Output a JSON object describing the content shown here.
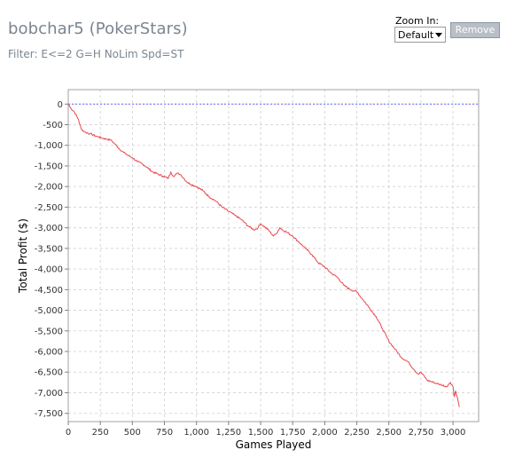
{
  "header": {
    "title": "bobchar5 (PokerStars)",
    "filter": "Filter: E<=2 G=H NoLim Spd=ST"
  },
  "controls": {
    "zoom_label": "Zoom In:",
    "zoom_value": "Default",
    "remove_label": "Remove"
  },
  "chart_data": {
    "type": "line",
    "title": "",
    "xlabel": "Games Played",
    "ylabel": "Total Profit ($)",
    "xlim": [
      0,
      3200
    ],
    "ylim": [
      -7700,
      350
    ],
    "grid": true,
    "legend": "none",
    "zero_line": true,
    "x_ticks": [
      {
        "v": 0,
        "label": "0"
      },
      {
        "v": 250,
        "label": "250"
      },
      {
        "v": 500,
        "label": "500"
      },
      {
        "v": 750,
        "label": "750"
      },
      {
        "v": 1000,
        "label": "1,000"
      },
      {
        "v": 1250,
        "label": "1,250"
      },
      {
        "v": 1500,
        "label": "1,500"
      },
      {
        "v": 1750,
        "label": "1,750"
      },
      {
        "v": 2000,
        "label": "2,000"
      },
      {
        "v": 2250,
        "label": "2,250"
      },
      {
        "v": 2500,
        "label": "2,500"
      },
      {
        "v": 2750,
        "label": "2,750"
      },
      {
        "v": 3000,
        "label": "3,000"
      }
    ],
    "y_ticks": [
      {
        "v": 0,
        "label": "0"
      },
      {
        "v": -500,
        "label": "-500"
      },
      {
        "v": -1000,
        "label": "-1,000"
      },
      {
        "v": -1500,
        "label": "-1,500"
      },
      {
        "v": -2000,
        "label": "-2,000"
      },
      {
        "v": -2500,
        "label": "-2,500"
      },
      {
        "v": -3000,
        "label": "-3,000"
      },
      {
        "v": -3500,
        "label": "-3,500"
      },
      {
        "v": -4000,
        "label": "-4,000"
      },
      {
        "v": -4500,
        "label": "-4,500"
      },
      {
        "v": -5000,
        "label": "-5,000"
      },
      {
        "v": -5500,
        "label": "-5,500"
      },
      {
        "v": -6000,
        "label": "-6,000"
      },
      {
        "v": -6500,
        "label": "-6,500"
      },
      {
        "v": -7000,
        "label": "-7,000"
      },
      {
        "v": -7500,
        "label": "-7,500"
      }
    ],
    "colors": {
      "line": "#e8474c",
      "zero_line": "#6666ff",
      "grid": "#d8d8d8"
    },
    "series": [
      {
        "x": [
          0,
          20,
          50,
          80,
          100,
          130,
          170,
          220,
          260,
          300,
          330,
          380,
          420,
          470,
          500,
          540,
          580,
          620,
          660,
          700,
          740,
          780,
          800,
          820,
          840,
          860,
          880,
          900,
          930,
          960,
          1000,
          1050,
          1100,
          1150,
          1200,
          1250,
          1300,
          1350,
          1400,
          1450,
          1480,
          1500,
          1520,
          1560,
          1600,
          1620,
          1650,
          1670,
          1700,
          1750,
          1800,
          1850,
          1900,
          1950,
          2000,
          2050,
          2100,
          2150,
          2200,
          2250,
          2300,
          2350,
          2400,
          2450,
          2500,
          2550,
          2600,
          2650,
          2700,
          2730,
          2750,
          2800,
          2850,
          2900,
          2950,
          2980,
          3000,
          3010,
          3020,
          3040,
          3050
        ],
        "y": [
          0,
          -100,
          -200,
          -380,
          -600,
          -680,
          -720,
          -780,
          -820,
          -850,
          -870,
          -1020,
          -1150,
          -1250,
          -1300,
          -1400,
          -1450,
          -1550,
          -1650,
          -1700,
          -1750,
          -1800,
          -1650,
          -1750,
          -1700,
          -1680,
          -1720,
          -1800,
          -1900,
          -1950,
          -2000,
          -2100,
          -2250,
          -2350,
          -2500,
          -2600,
          -2700,
          -2800,
          -2950,
          -3050,
          -3000,
          -2900,
          -2950,
          -3050,
          -3200,
          -3150,
          -3000,
          -3050,
          -3100,
          -3200,
          -3350,
          -3500,
          -3650,
          -3850,
          -3950,
          -4100,
          -4200,
          -4400,
          -4500,
          -4550,
          -4750,
          -4950,
          -5150,
          -5450,
          -5750,
          -5950,
          -6150,
          -6250,
          -6450,
          -6550,
          -6500,
          -6700,
          -6750,
          -6800,
          -6850,
          -6750,
          -6850,
          -7100,
          -6950,
          -7200,
          -7350
        ]
      }
    ]
  }
}
